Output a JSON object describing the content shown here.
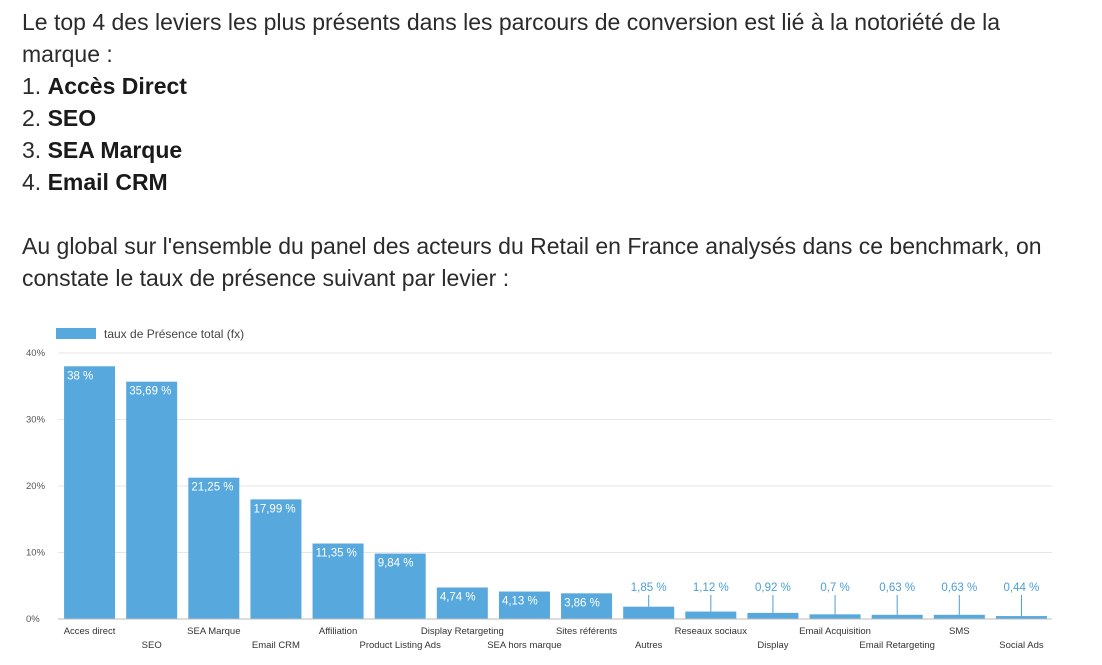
{
  "intro": {
    "line1": "Le top 4 des leviers les plus présents dans les parcours de conversion est lié à la notoriété de la marque :",
    "items": [
      {
        "num": "1.",
        "label": "Accès Direct"
      },
      {
        "num": "2.",
        "label": "SEO"
      },
      {
        "num": "3.",
        "label": "SEA Marque"
      },
      {
        "num": "4.",
        "label": "Email CRM"
      }
    ],
    "line2": "Au global sur l'ensemble du panel des acteurs du Retail en France analysés dans ce benchmark, on constate le taux de présence suivant par levier :"
  },
  "colors": {
    "bar": "#57a8dc",
    "label_outside": "#4a9fd8",
    "grid": "#e6e6e6"
  },
  "chart_data": {
    "type": "bar",
    "legend": "taux de Présence total (fx)",
    "legend_position": "top-left",
    "grid": true,
    "ylim": [
      0,
      40
    ],
    "yticks": [
      "0%",
      "10%",
      "20%",
      "30%",
      "40%"
    ],
    "categories": [
      "Acces direct",
      "SEO",
      "SEA Marque",
      "Email CRM",
      "Affiliation",
      "Product Listing Ads",
      "Display Retargeting",
      "SEA hors marque",
      "Sites référents",
      "Autres",
      "Reseaux sociaux",
      "Display",
      "Email Acquisition",
      "Email Retargeting",
      "SMS",
      "Social Ads"
    ],
    "values": [
      38,
      35.69,
      21.25,
      17.99,
      11.35,
      9.84,
      4.74,
      4.13,
      3.86,
      1.85,
      1.12,
      0.92,
      0.7,
      0.63,
      0.63,
      0.44
    ],
    "data_labels": [
      "38 %",
      "35,69 %",
      "21,25 %",
      "17,99 %",
      "11,35 %",
      "9,84 %",
      "4,74 %",
      "4,13 %",
      "3,86 %",
      "1,85 %",
      "1,12 %",
      "0,92 %",
      "0,7 %",
      "0,63 %",
      "0,63 %",
      "0,44 %"
    ]
  }
}
